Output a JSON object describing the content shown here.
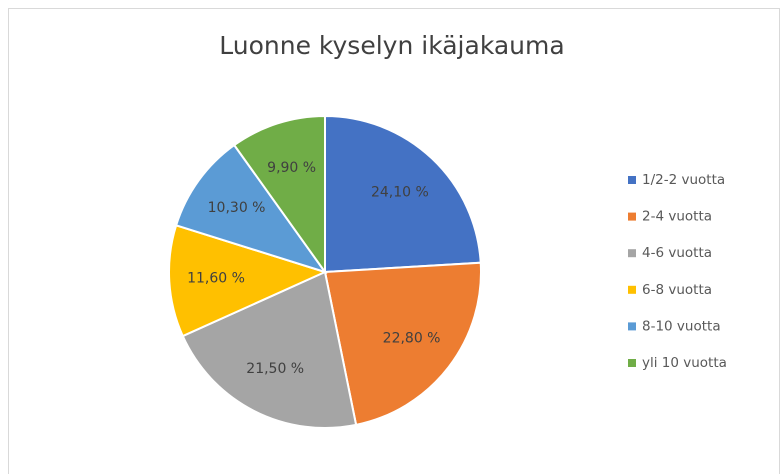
{
  "chart_data": {
    "type": "pie",
    "title": "Luonne kyselyn ikäjakauma",
    "categories": [
      "1/2-2 vuotta",
      "2-4 vuotta",
      "4-6 vuotta",
      "6-8 vuotta",
      "8-10 vuotta",
      "yli 10 vuotta"
    ],
    "values": [
      24.1,
      22.8,
      21.5,
      11.6,
      10.3,
      9.9
    ],
    "value_labels": [
      "24,10 %",
      "22,80 %",
      "21,50 %",
      "11,60 %",
      "10,30 %",
      "9,90 %"
    ],
    "colors": [
      "#4472c4",
      "#ed7d31",
      "#a5a5a5",
      "#ffc000",
      "#5b9bd5",
      "#70ad47"
    ],
    "legend": "right"
  }
}
